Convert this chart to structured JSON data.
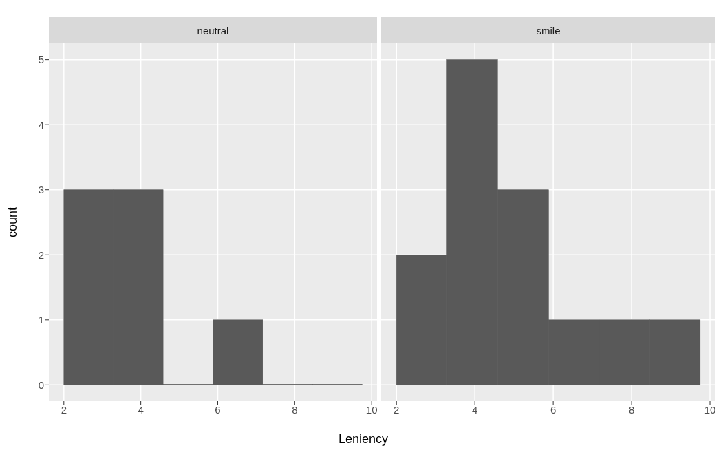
{
  "chart_data": [
    {
      "type": "histogram",
      "title": "neutral",
      "xlabel": "Leniency",
      "ylabel": "count",
      "bins": [
        2,
        3.29,
        4.58,
        5.88,
        7.17,
        8.46,
        9.75
      ],
      "values": [
        3,
        3,
        0,
        1,
        0,
        0
      ],
      "color": "#595959",
      "xlim": [
        1.61,
        10.14
      ],
      "ylim": [
        -0.25,
        5.25
      ],
      "xticks": [
        2,
        4,
        6,
        8,
        10
      ],
      "yticks": [
        0,
        1,
        2,
        3,
        4,
        5
      ],
      "grid": true
    },
    {
      "type": "histogram",
      "title": "smile",
      "bins": [
        2,
        3.29,
        4.58,
        5.88,
        7.17,
        8.46,
        9.75
      ],
      "values": [
        2,
        5,
        3,
        1,
        1,
        1
      ],
      "color": "#595959",
      "xlim": [
        1.61,
        10.14
      ],
      "ylim": [
        -0.25,
        5.25
      ],
      "xticks": [
        2,
        4,
        6,
        8,
        10
      ],
      "yticks": [
        0,
        1,
        2,
        3,
        4,
        5
      ],
      "grid": true,
      "tick_labels": "x"
    }
  ]
}
